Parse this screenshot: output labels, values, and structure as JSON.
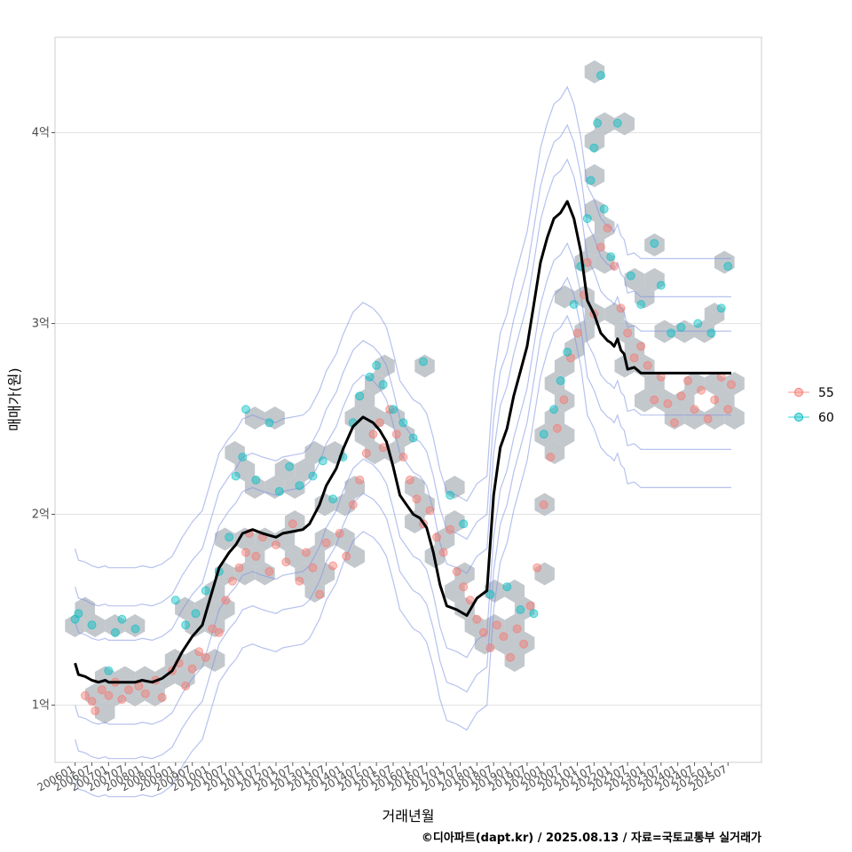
{
  "chart_data": {
    "type": "scatter",
    "title": "",
    "xlabel": "거래년월",
    "ylabel": "매매가(원)",
    "caption": "©디아파트(dapt.kr) / 2025.08.13 / 자료=국토교통부 실거래가",
    "ylim": [
      0.7,
      4.5
    ],
    "y_ticks": [
      1,
      2,
      3,
      4
    ],
    "y_tick_labels": [
      "1억",
      "2억",
      "3억",
      "4억"
    ],
    "x_ticks": [
      "200601",
      "200607",
      "200701",
      "200707",
      "200801",
      "200807",
      "200901",
      "200907",
      "201001",
      "201007",
      "201101",
      "201107",
      "201201",
      "201207",
      "201301",
      "201307",
      "201401",
      "201407",
      "201501",
      "201507",
      "201601",
      "201607",
      "201701",
      "201707",
      "201801",
      "201807",
      "201901",
      "201907",
      "202001",
      "202007",
      "202101",
      "202107",
      "202201",
      "202207",
      "202301",
      "202307",
      "202401",
      "202407",
      "202501",
      "202507"
    ],
    "x_tick_labels": [
      "200601",
      "200607",
      "200701",
      "200707",
      "200801",
      "200807",
      "200901",
      "200907",
      "201001",
      "201007",
      "201101",
      "201107",
      "201201",
      "201207",
      "201301",
      "201307",
      "201401",
      "201407",
      "201501",
      "201507",
      "201601",
      "201607",
      "201701",
      "201707",
      "201801",
      "201807",
      "201901",
      "201907",
      "202001",
      "202007",
      "202101",
      "202107",
      "202201",
      "202207",
      "202301",
      "202307",
      "202401",
      "202407",
      "202501",
      "202507"
    ],
    "legend": {
      "position": "right",
      "entries": [
        {
          "name": "55",
          "color": "#F8766D"
        },
        {
          "name": "60",
          "color": "#00BFC4"
        }
      ]
    },
    "trend_line": {
      "name": "moving average",
      "color": "#000000",
      "x": [
        2006.0,
        2006.1,
        2006.3,
        2006.5,
        2006.7,
        2006.9,
        2007.0,
        2007.2,
        2007.4,
        2007.6,
        2007.8,
        2008.0,
        2008.3,
        2008.6,
        2008.9,
        2009.2,
        2009.5,
        2009.8,
        2010.0,
        2010.3,
        2010.6,
        2010.8,
        2011.0,
        2011.3,
        2011.6,
        2011.8,
        2012.0,
        2012.2,
        2012.5,
        2012.8,
        2013.0,
        2013.3,
        2013.5,
        2013.8,
        2014.0,
        2014.3,
        2014.6,
        2014.9,
        2015.1,
        2015.3,
        2015.5,
        2015.7,
        2015.9,
        2016.1,
        2016.3,
        2016.5,
        2016.7,
        2016.9,
        2017.1,
        2017.4,
        2017.7,
        2018.0,
        2018.3,
        2018.5,
        2018.7,
        2018.9,
        2019.1,
        2019.3,
        2019.5,
        2019.7,
        2019.9,
        2020.1,
        2020.3,
        2020.5,
        2020.7,
        2020.9,
        2021.1,
        2021.3,
        2021.5,
        2021.7,
        2021.9,
        2022.0,
        2022.1,
        2022.2,
        2022.3,
        2022.4,
        2022.5,
        2022.7,
        2022.9,
        2023.1,
        2023.3,
        2023.5,
        2023.7,
        2023.9,
        2024.1,
        2024.3,
        2024.5,
        2024.7,
        2024.9,
        2025.1,
        2025.3,
        2025.6
      ],
      "y": [
        1.22,
        1.16,
        1.15,
        1.13,
        1.12,
        1.13,
        1.12,
        1.12,
        1.12,
        1.12,
        1.12,
        1.13,
        1.12,
        1.14,
        1.18,
        1.28,
        1.36,
        1.42,
        1.54,
        1.72,
        1.8,
        1.84,
        1.9,
        1.92,
        1.9,
        1.89,
        1.88,
        1.9,
        1.91,
        1.92,
        1.95,
        2.05,
        2.15,
        2.24,
        2.34,
        2.46,
        2.51,
        2.48,
        2.44,
        2.38,
        2.25,
        2.1,
        2.05,
        2.0,
        1.98,
        1.93,
        1.8,
        1.63,
        1.52,
        1.5,
        1.47,
        1.56,
        1.6,
        2.1,
        2.35,
        2.45,
        2.62,
        2.75,
        2.88,
        3.1,
        3.32,
        3.45,
        3.55,
        3.58,
        3.64,
        3.55,
        3.38,
        3.12,
        3.05,
        2.95,
        2.91,
        2.9,
        2.88,
        2.92,
        2.86,
        2.84,
        2.76,
        2.77,
        2.74,
        2.74,
        2.74,
        2.74,
        2.74,
        2.74,
        2.74,
        2.74,
        2.74,
        2.74,
        2.74,
        2.74,
        2.74,
        2.74
      ]
    },
    "series": [
      {
        "name": "55",
        "color": "#F8766D",
        "points": [
          [
            2006.3,
            1.05
          ],
          [
            2006.5,
            1.02
          ],
          [
            2006.6,
            0.97
          ],
          [
            2006.8,
            1.08
          ],
          [
            2007.0,
            1.05
          ],
          [
            2007.2,
            1.12
          ],
          [
            2007.4,
            1.03
          ],
          [
            2007.6,
            1.08
          ],
          [
            2007.9,
            1.1
          ],
          [
            2008.1,
            1.06
          ],
          [
            2008.4,
            1.13
          ],
          [
            2008.6,
            1.04
          ],
          [
            2008.9,
            1.18
          ],
          [
            2009.1,
            1.22
          ],
          [
            2009.3,
            1.1
          ],
          [
            2009.5,
            1.19
          ],
          [
            2009.7,
            1.28
          ],
          [
            2009.9,
            1.25
          ],
          [
            2010.1,
            1.4
          ],
          [
            2010.3,
            1.38
          ],
          [
            2010.5,
            1.55
          ],
          [
            2010.7,
            1.65
          ],
          [
            2010.9,
            1.72
          ],
          [
            2011.1,
            1.8
          ],
          [
            2011.2,
            1.9
          ],
          [
            2011.4,
            1.78
          ],
          [
            2011.6,
            1.88
          ],
          [
            2011.8,
            1.7
          ],
          [
            2012.0,
            1.84
          ],
          [
            2012.3,
            1.75
          ],
          [
            2012.5,
            1.95
          ],
          [
            2012.7,
            1.65
          ],
          [
            2012.9,
            1.8
          ],
          [
            2013.1,
            1.72
          ],
          [
            2013.3,
            1.58
          ],
          [
            2013.5,
            1.85
          ],
          [
            2013.7,
            1.73
          ],
          [
            2013.9,
            1.9
          ],
          [
            2014.1,
            1.78
          ],
          [
            2014.3,
            2.05
          ],
          [
            2014.5,
            2.18
          ],
          [
            2014.7,
            2.32
          ],
          [
            2014.9,
            2.42
          ],
          [
            2015.1,
            2.48
          ],
          [
            2015.2,
            2.35
          ],
          [
            2015.4,
            2.55
          ],
          [
            2015.6,
            2.42
          ],
          [
            2015.8,
            2.3
          ],
          [
            2016.0,
            2.18
          ],
          [
            2016.2,
            2.08
          ],
          [
            2016.4,
            1.95
          ],
          [
            2016.6,
            2.02
          ],
          [
            2016.8,
            1.88
          ],
          [
            2017.0,
            1.8
          ],
          [
            2017.2,
            1.92
          ],
          [
            2017.4,
            1.7
          ],
          [
            2017.6,
            1.62
          ],
          [
            2017.8,
            1.55
          ],
          [
            2018.0,
            1.45
          ],
          [
            2018.2,
            1.38
          ],
          [
            2018.4,
            1.3
          ],
          [
            2018.6,
            1.42
          ],
          [
            2018.8,
            1.36
          ],
          [
            2019.0,
            1.25
          ],
          [
            2019.2,
            1.4
          ],
          [
            2019.4,
            1.32
          ],
          [
            2019.6,
            1.52
          ],
          [
            2019.8,
            1.72
          ],
          [
            2020.0,
            2.05
          ],
          [
            2020.2,
            2.3
          ],
          [
            2020.4,
            2.45
          ],
          [
            2020.6,
            2.6
          ],
          [
            2020.8,
            2.82
          ],
          [
            2021.0,
            2.95
          ],
          [
            2021.2,
            3.15
          ],
          [
            2021.3,
            3.32
          ],
          [
            2021.5,
            3.05
          ],
          [
            2021.7,
            3.4
          ],
          [
            2021.9,
            3.5
          ],
          [
            2022.1,
            3.3
          ],
          [
            2022.3,
            3.08
          ],
          [
            2022.5,
            2.95
          ],
          [
            2022.7,
            2.82
          ],
          [
            2022.9,
            2.88
          ],
          [
            2023.1,
            2.78
          ],
          [
            2023.3,
            2.6
          ],
          [
            2023.5,
            2.72
          ],
          [
            2023.7,
            2.58
          ],
          [
            2023.9,
            2.48
          ],
          [
            2024.1,
            2.62
          ],
          [
            2024.3,
            2.7
          ],
          [
            2024.5,
            2.55
          ],
          [
            2024.7,
            2.65
          ],
          [
            2024.9,
            2.5
          ],
          [
            2025.1,
            2.6
          ],
          [
            2025.3,
            2.72
          ],
          [
            2025.5,
            2.55
          ],
          [
            2025.6,
            2.68
          ]
        ]
      },
      {
        "name": "60",
        "color": "#00BFC4",
        "points": [
          [
            2006.0,
            1.45
          ],
          [
            2006.1,
            1.48
          ],
          [
            2006.5,
            1.42
          ],
          [
            2007.0,
            1.18
          ],
          [
            2007.2,
            1.38
          ],
          [
            2007.4,
            1.45
          ],
          [
            2007.8,
            1.4
          ],
          [
            2009.0,
            1.55
          ],
          [
            2009.3,
            1.42
          ],
          [
            2009.6,
            1.48
          ],
          [
            2009.9,
            1.6
          ],
          [
            2010.3,
            1.7
          ],
          [
            2010.6,
            1.88
          ],
          [
            2010.8,
            2.2
          ],
          [
            2011.0,
            2.3
          ],
          [
            2011.1,
            2.55
          ],
          [
            2011.4,
            2.18
          ],
          [
            2011.8,
            2.48
          ],
          [
            2012.1,
            2.12
          ],
          [
            2012.4,
            2.25
          ],
          [
            2012.7,
            2.15
          ],
          [
            2013.1,
            2.2
          ],
          [
            2013.4,
            2.28
          ],
          [
            2013.7,
            2.08
          ],
          [
            2014.0,
            2.3
          ],
          [
            2014.3,
            2.48
          ],
          [
            2014.5,
            2.62
          ],
          [
            2014.8,
            2.72
          ],
          [
            2015.0,
            2.78
          ],
          [
            2015.2,
            2.68
          ],
          [
            2015.5,
            2.55
          ],
          [
            2015.8,
            2.48
          ],
          [
            2016.1,
            2.4
          ],
          [
            2016.4,
            2.8
          ],
          [
            2017.2,
            2.1
          ],
          [
            2017.6,
            1.95
          ],
          [
            2018.4,
            1.58
          ],
          [
            2018.9,
            1.62
          ],
          [
            2019.3,
            1.5
          ],
          [
            2019.7,
            1.48
          ],
          [
            2020.0,
            2.42
          ],
          [
            2020.3,
            2.55
          ],
          [
            2020.5,
            2.7
          ],
          [
            2020.7,
            2.85
          ],
          [
            2020.9,
            3.1
          ],
          [
            2021.1,
            3.3
          ],
          [
            2021.3,
            3.55
          ],
          [
            2021.4,
            3.75
          ],
          [
            2021.5,
            3.92
          ],
          [
            2021.6,
            4.05
          ],
          [
            2021.7,
            4.3
          ],
          [
            2021.8,
            3.6
          ],
          [
            2022.0,
            3.35
          ],
          [
            2022.2,
            4.05
          ],
          [
            2022.6,
            3.25
          ],
          [
            2022.9,
            3.1
          ],
          [
            2023.3,
            3.42
          ],
          [
            2023.5,
            3.2
          ],
          [
            2023.8,
            2.95
          ],
          [
            2024.1,
            2.98
          ],
          [
            2024.6,
            3.0
          ],
          [
            2025.0,
            2.95
          ],
          [
            2025.3,
            3.08
          ],
          [
            2025.5,
            3.3
          ]
        ]
      }
    ]
  }
}
